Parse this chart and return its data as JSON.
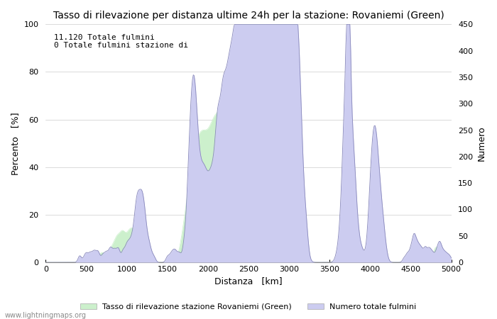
{
  "title": "Tasso di rilevazione per distanza ultime 24h per la stazione: Rovaniemi (Green)",
  "xlabel": "Distanza   [km]",
  "ylabel_left": "Percento   [%]",
  "ylabel_right": "Numero",
  "annotation_line1": "11.120 Totale fulmini",
  "annotation_line2": "0 Totale fulmini stazione di",
  "xlim": [
    0,
    5000
  ],
  "ylim_left": [
    0,
    100
  ],
  "ylim_right": [
    0,
    450
  ],
  "xticks": [
    0,
    500,
    1000,
    1500,
    2000,
    2500,
    3000,
    3500,
    4000,
    4500,
    5000
  ],
  "yticks_left": [
    0,
    20,
    40,
    60,
    80,
    100
  ],
  "yticks_right": [
    0,
    50,
    100,
    150,
    200,
    250,
    300,
    350,
    400,
    450
  ],
  "legend_label_green": "Tasso di rilevazione stazione Rovaniemi (Green)",
  "legend_label_blue": "Numero totale fulmini",
  "watermark": "www.lightningmaps.org",
  "fill_color_green": "#ccf0cc",
  "fill_color_blue": "#ccccf0",
  "line_color_blue": "#8888bb",
  "bg_color": "#ffffff",
  "grid_color": "#cccccc",
  "title_fontsize": 10,
  "axis_fontsize": 9,
  "tick_fontsize": 8,
  "watermark_fontsize": 7
}
